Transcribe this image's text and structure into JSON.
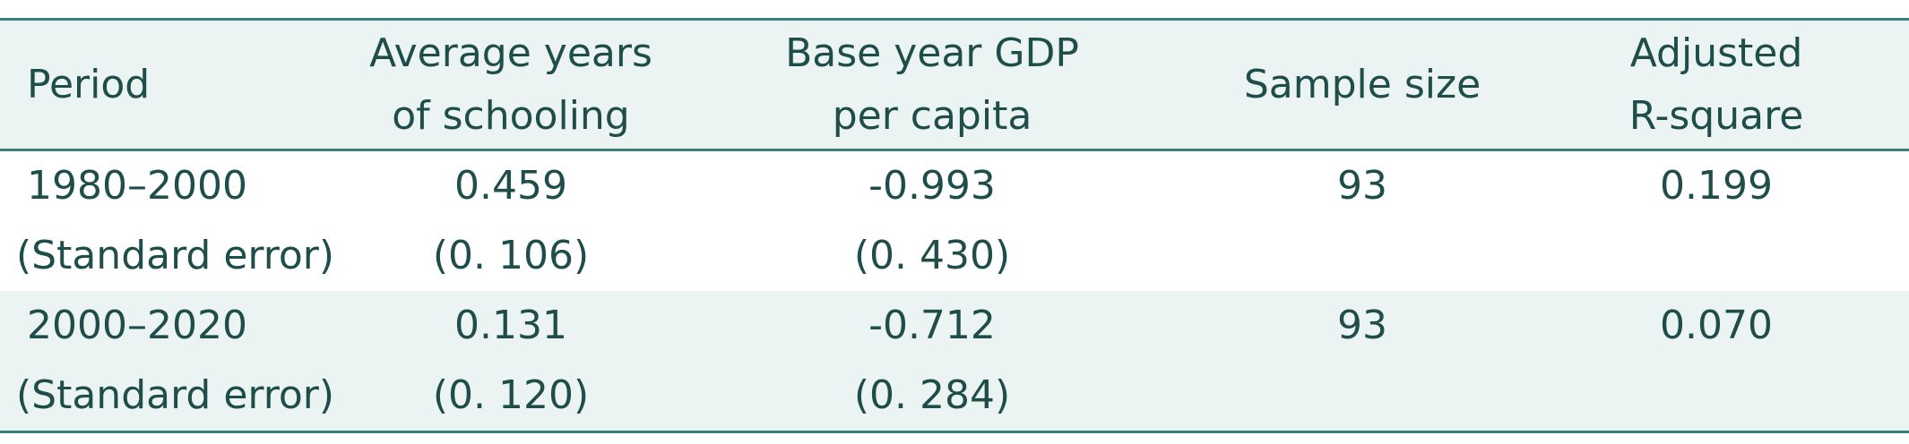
{
  "table": {
    "headers": [
      [
        "Period"
      ],
      [
        "Average years",
        "of schooling"
      ],
      [
        "Base year GDP",
        "per capita"
      ],
      [
        "Sample size"
      ],
      [
        "Adjusted",
        "R-square"
      ]
    ],
    "rows": [
      {
        "period": "1980–2000",
        "schooling": "0.459",
        "gdp": "-0.993",
        "sample": "93",
        "r2": "0.199",
        "se_label": "(Standard error)",
        "se_schooling": "(0. 106)",
        "se_gdp": "(0. 430)"
      },
      {
        "period": "2000–2020",
        "schooling": "0.131",
        "gdp": "-0.712",
        "sample": "93",
        "r2": "0.070",
        "se_label": "(Standard error)",
        "se_schooling": "(0. 120)",
        "se_gdp": "(0. 284)"
      }
    ]
  }
}
